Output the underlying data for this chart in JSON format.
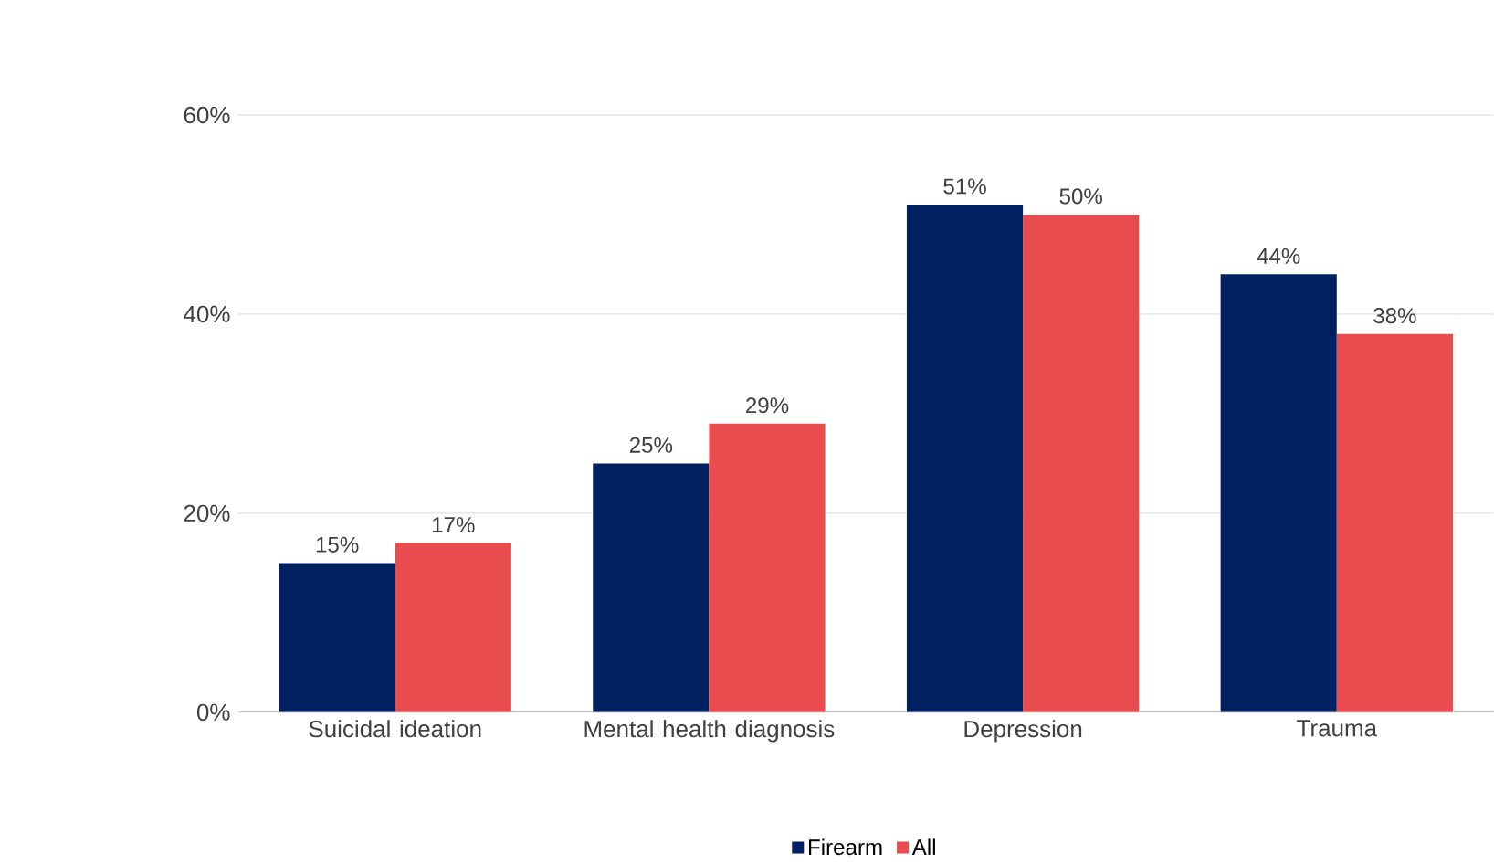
{
  "chart_data": {
    "type": "bar",
    "categories": [
      "Suicidal ideation",
      "Mental health diagnosis",
      "Depression",
      "Trauma"
    ],
    "series": [
      {
        "name": "Firearm",
        "color": "#002060",
        "values": [
          15,
          25,
          51,
          44
        ],
        "value_labels": [
          "15%",
          "25%",
          "51%",
          "44%"
        ]
      },
      {
        "name": "All",
        "color": "#e84c4f",
        "values": [
          17,
          29,
          50,
          38
        ],
        "value_labels": [
          "17%",
          "29%",
          "50%",
          "38%"
        ]
      }
    ],
    "ylim": [
      0,
      60
    ],
    "yticks": [
      {
        "value": 0,
        "label": "0%"
      },
      {
        "value": 20,
        "label": "20%"
      },
      {
        "value": 40,
        "label": "40%"
      },
      {
        "value": 60,
        "label": "60%"
      }
    ],
    "grid": "y",
    "legend": "bottom"
  }
}
